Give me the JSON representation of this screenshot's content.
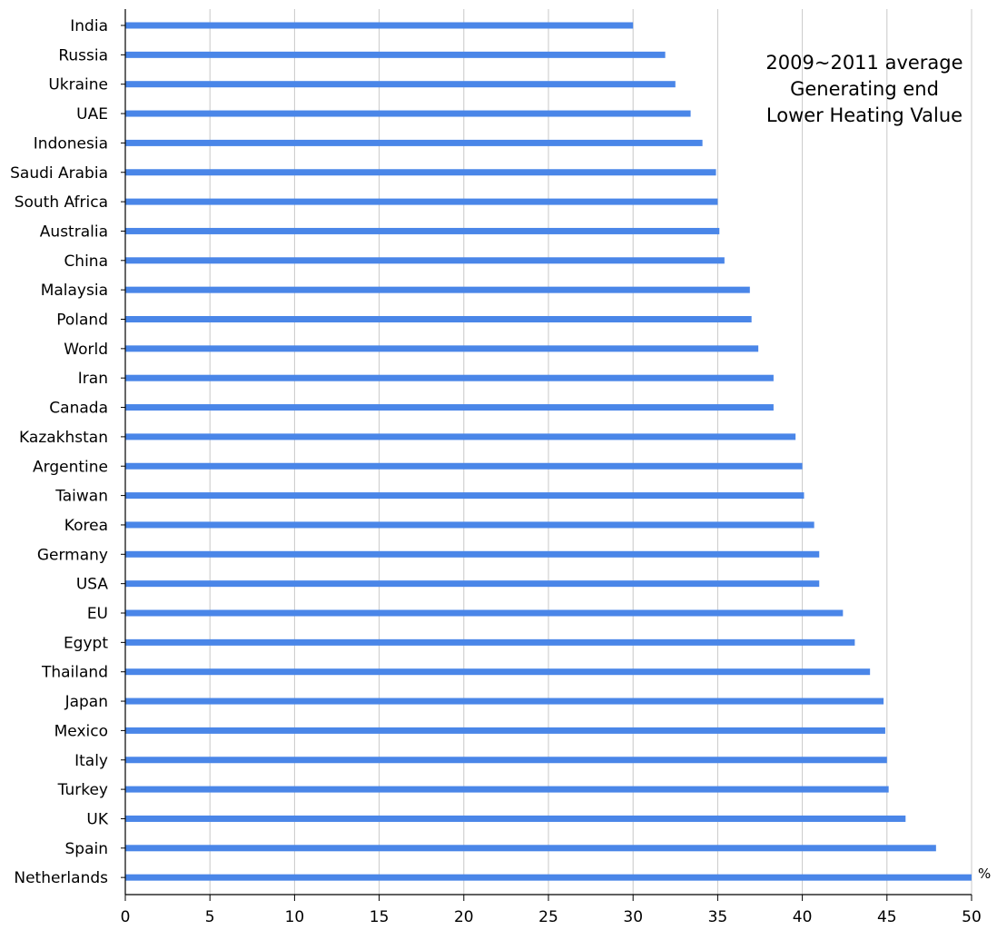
{
  "chart_data": {
    "type": "bar",
    "orientation": "horizontal",
    "title_lines": [
      "2009~2011 average",
      "Generating end",
      "Lower Heating Value"
    ],
    "xlabel": "%",
    "xlim": [
      0,
      50
    ],
    "xticks": [
      "0",
      "5",
      "10",
      "15",
      "20",
      "25",
      "30",
      "35",
      "40",
      "45",
      "50"
    ],
    "grid": "vertical",
    "categories": [
      "India",
      "Russia",
      "Ukraine",
      "UAE",
      "Indonesia",
      "Saudi Arabia",
      "South Africa",
      "Australia",
      "China",
      "Malaysia",
      "Poland",
      "World",
      "Iran",
      "Canada",
      "Kazakhstan",
      "Argentine",
      "Taiwan",
      "Korea",
      "Germany",
      "USA",
      "EU",
      "Egypt",
      "Thailand",
      "Japan",
      "Mexico",
      "Italy",
      "Turkey",
      "UK",
      "Spain",
      "Netherlands"
    ],
    "values": [
      30.0,
      31.9,
      32.5,
      33.4,
      34.1,
      34.9,
      35.0,
      35.1,
      35.4,
      36.9,
      37.0,
      37.4,
      38.3,
      38.3,
      39.6,
      40.0,
      40.1,
      40.7,
      41.0,
      41.0,
      42.4,
      43.1,
      44.0,
      44.8,
      44.9,
      45.0,
      45.1,
      46.1,
      47.9,
      50.0
    ],
    "bar_color": "#4a86e8"
  }
}
